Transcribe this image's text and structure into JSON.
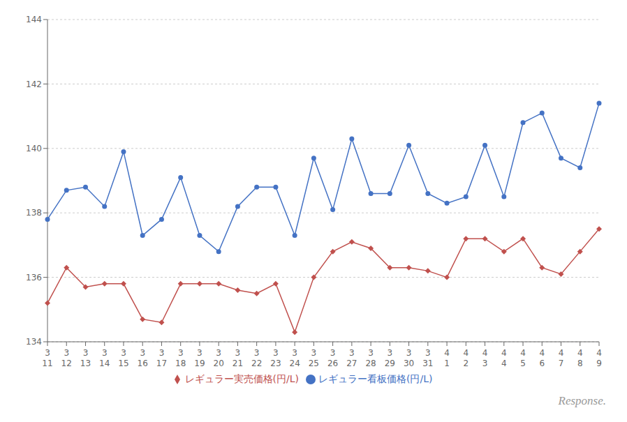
{
  "chart_data": {
    "type": "line",
    "categories": [
      [
        "3",
        "11"
      ],
      [
        "3",
        "12"
      ],
      [
        "3",
        "13"
      ],
      [
        "3",
        "14"
      ],
      [
        "3",
        "15"
      ],
      [
        "3",
        "16"
      ],
      [
        "3",
        "17"
      ],
      [
        "3",
        "18"
      ],
      [
        "3",
        "19"
      ],
      [
        "3",
        "20"
      ],
      [
        "3",
        "21"
      ],
      [
        "3",
        "22"
      ],
      [
        "3",
        "23"
      ],
      [
        "3",
        "24"
      ],
      [
        "3",
        "25"
      ],
      [
        "3",
        "26"
      ],
      [
        "3",
        "27"
      ],
      [
        "3",
        "28"
      ],
      [
        "3",
        "29"
      ],
      [
        "3",
        "30"
      ],
      [
        "3",
        "31"
      ],
      [
        "4",
        "1"
      ],
      [
        "4",
        "2"
      ],
      [
        "4",
        "3"
      ],
      [
        "4",
        "4"
      ],
      [
        "4",
        "5"
      ],
      [
        "4",
        "6"
      ],
      [
        "4",
        "7"
      ],
      [
        "4",
        "8"
      ],
      [
        "4",
        "9"
      ]
    ],
    "series": [
      {
        "name": "レギュラー看板価格(円/L)",
        "color": "#4472C4",
        "marker": "circle",
        "values": [
          137.8,
          138.7,
          138.8,
          138.2,
          139.9,
          137.3,
          137.8,
          139.1,
          137.3,
          136.8,
          138.2,
          138.8,
          138.8,
          137.3,
          139.7,
          138.1,
          140.3,
          138.6,
          138.6,
          140.1,
          138.6,
          138.3,
          138.5,
          140.1,
          138.5,
          140.8,
          141.1,
          139.7,
          139.4,
          141.4
        ]
      },
      {
        "name": "レギュラー実売価格(円/L)",
        "color": "#C0504D",
        "marker": "diamond",
        "values": [
          135.2,
          136.3,
          135.7,
          135.8,
          135.8,
          134.7,
          134.6,
          135.8,
          135.8,
          135.8,
          135.6,
          135.5,
          135.8,
          134.3,
          136.0,
          136.8,
          137.1,
          136.9,
          136.3,
          136.3,
          136.2,
          136.0,
          137.2,
          137.2,
          136.8,
          137.2,
          136.3,
          136.1,
          136.8,
          137.5
        ]
      }
    ],
    "ylim": [
      134,
      144
    ],
    "yticks": [
      134,
      136,
      138,
      140,
      142,
      144
    ],
    "grid": true,
    "legend": "bottom",
    "annotations": [
      "Response."
    ]
  }
}
